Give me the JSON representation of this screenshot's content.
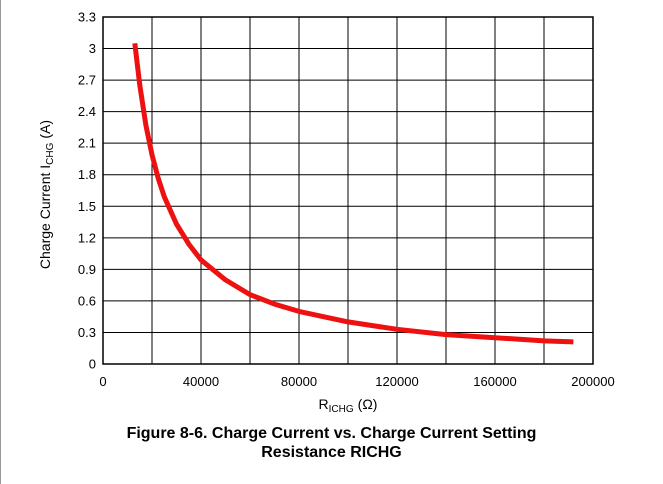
{
  "chart_data": {
    "type": "line",
    "title": "",
    "xlabel_main": "R",
    "xlabel_sub": "ICHG",
    "xlabel_unit": "(Ω)",
    "ylabel_main": "Charge Current I",
    "ylabel_sub": "CHG",
    "ylabel_unit": "(A)",
    "xlim": [
      0,
      200000
    ],
    "ylim": [
      0,
      3.3
    ],
    "x_ticks": [
      0,
      20000,
      40000,
      60000,
      80000,
      100000,
      120000,
      140000,
      160000,
      180000,
      200000
    ],
    "x_tick_labels": [
      "0",
      "",
      "40000",
      "",
      "80000",
      "",
      "120000",
      "",
      "160000",
      "",
      "200000"
    ],
    "y_ticks": [
      0,
      0.3,
      0.6,
      0.9,
      1.2,
      1.5,
      1.8,
      2.1,
      2.4,
      2.7,
      3,
      3.3
    ],
    "y_tick_labels": [
      "0",
      "0.3",
      "0.6",
      "0.9",
      "1.2",
      "1.5",
      "1.8",
      "2.1",
      "2.4",
      "2.7",
      "3",
      "3.3"
    ],
    "grid": true,
    "series": [
      {
        "color": "#ee1111",
        "x": [
          13000,
          15000,
          17500,
          20000,
          22500,
          25000,
          30000,
          35000,
          40000,
          50000,
          60000,
          70000,
          80000,
          100000,
          120000,
          140000,
          160000,
          180000,
          192000
        ],
        "y": [
          3.05,
          2.65,
          2.27,
          1.99,
          1.77,
          1.59,
          1.33,
          1.14,
          0.99,
          0.8,
          0.66,
          0.57,
          0.5,
          0.4,
          0.33,
          0.28,
          0.25,
          0.22,
          0.21
        ]
      }
    ]
  },
  "caption": {
    "line1": "Figure 8-6. Charge Current vs. Charge Current Setting",
    "line2": "Resistance RICHG"
  }
}
